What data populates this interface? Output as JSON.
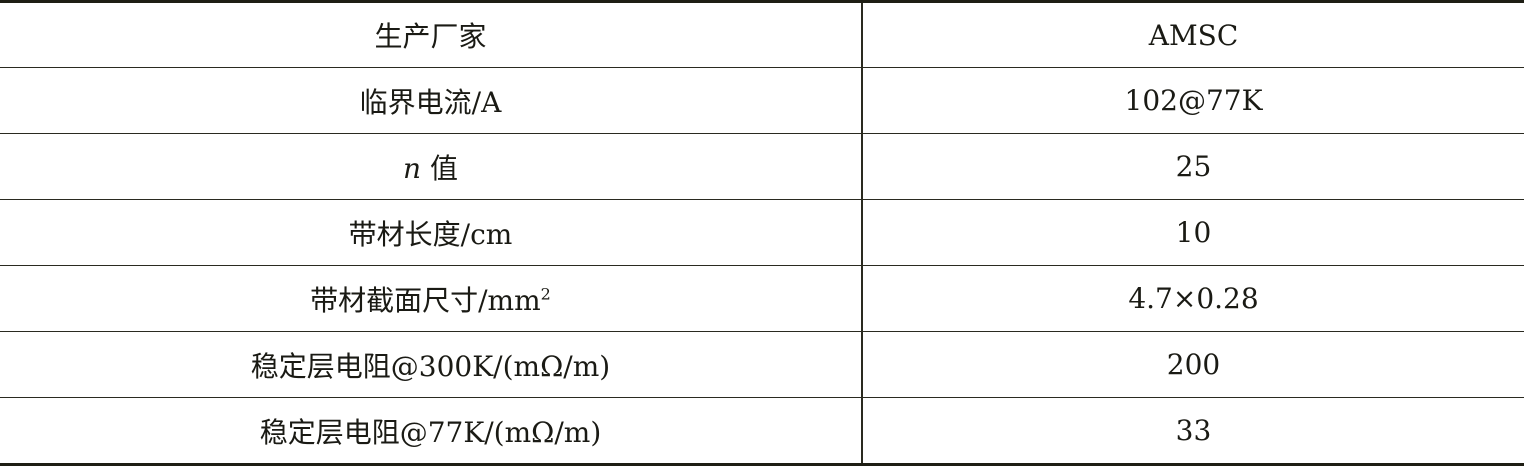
{
  "table": {
    "rows": [
      {
        "param": "生产厂家",
        "value": "AMSC"
      },
      {
        "param": "临界电流/A",
        "value": "102@77K"
      },
      {
        "param_italic": "n",
        "param": " 值",
        "value": "25"
      },
      {
        "param": "带材长度/cm",
        "value": "10"
      },
      {
        "param": "带材截面尺寸/mm",
        "param_sup": "2",
        "value": "4.7×0.28"
      },
      {
        "param": "稳定层电阻@300K/(mΩ/m)",
        "value": "200"
      },
      {
        "param": "稳定层电阻@77K/(mΩ/m)",
        "value": "33"
      }
    ]
  }
}
